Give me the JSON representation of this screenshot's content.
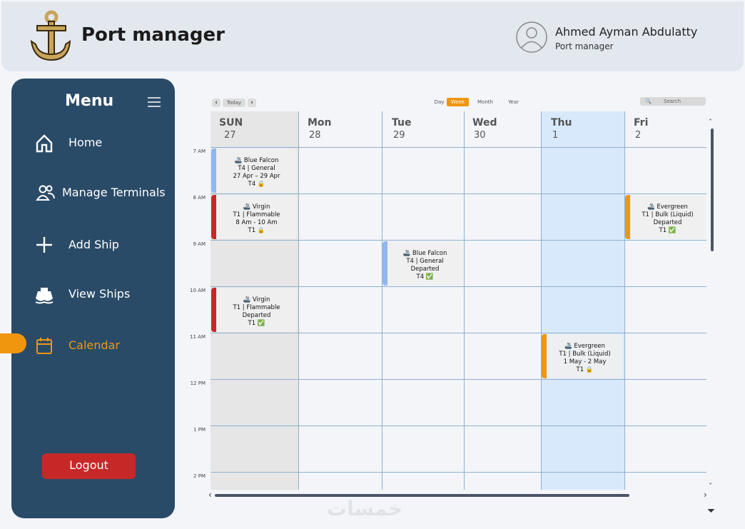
{
  "header": {
    "title": "Port manager",
    "user_name": "Ahmed Ayman Abdulatty",
    "user_role": "Port manager"
  },
  "sidebar": {
    "title": "Menu",
    "items": [
      "Home",
      "Manage Terminals",
      "Add Ship",
      "View Ships",
      "Calendar"
    ],
    "active_color": "#f0960e",
    "logout": "Logout"
  },
  "toolbar": {
    "today": "Today",
    "views": [
      "Day",
      "Week",
      "Month",
      "Year"
    ],
    "active_view": "Week",
    "search": "Search"
  },
  "days": [
    {
      "name": "SUN",
      "date": "27",
      "shade": "#e6e6e6"
    },
    {
      "name": "Mon",
      "date": "28"
    },
    {
      "name": "Tue",
      "date": "29"
    },
    {
      "name": "Wed",
      "date": "30"
    },
    {
      "name": "Thu",
      "date": "1",
      "shade": "#d8e9fb"
    },
    {
      "name": "Fri",
      "date": "2"
    }
  ],
  "hours": [
    {
      "label": "7 AM",
      "cells": [
        {
          "title": "🚢 Blue Falcon",
          "lines": [
            "T4 | General",
            "27 Apr – 29 Apr",
            "T4 🔒"
          ],
          "color": "#8fb8f0"
        },
        null,
        null,
        null,
        null,
        null
      ]
    },
    {
      "label": "8 AM",
      "cells": [
        {
          "title": "🚢 Virgin",
          "lines": [
            "T1 | Flammable",
            "8 Am - 10 Am",
            "T1 🔒"
          ],
          "color": "#c62828"
        },
        null,
        null,
        null,
        null,
        {
          "title": "🚢 Evergreen",
          "lines": [
            "T1 | Bulk (Liquid)",
            "Departed",
            "T1 ✅"
          ],
          "color": "#f0960e"
        }
      ]
    },
    {
      "label": "9 AM",
      "cells": [
        null,
        null,
        {
          "title": "🚢 Blue Falcon",
          "lines": [
            "T4 | General",
            "Departed",
            "T4 ✅"
          ],
          "color": "#8fb8f0"
        },
        null,
        null,
        null
      ]
    },
    {
      "label": "10 AM",
      "cells": [
        {
          "title": "🚢 Virgin",
          "lines": [
            "T1 | Flammable",
            "Departed",
            "T1 ✅"
          ],
          "color": "#c62828"
        },
        null,
        null,
        null,
        null,
        null
      ]
    },
    {
      "label": "11 AM",
      "cells": [
        null,
        null,
        null,
        null,
        {
          "title": "🚢 Evergreen",
          "lines": [
            "T1 | Bulk (Liquid)",
            "1 May - 2 May",
            "T1 🔒"
          ],
          "color": "#f0960e"
        },
        null
      ]
    },
    {
      "label": "12 PM",
      "cells": [
        null,
        null,
        null,
        null,
        null,
        null
      ]
    },
    {
      "label": "1 PM",
      "cells": [
        null,
        null,
        null,
        null,
        null,
        null
      ]
    },
    {
      "label": "2 PM",
      "cells": [
        null,
        null,
        null,
        null,
        null,
        null
      ]
    }
  ],
  "watermark": "خمسات"
}
